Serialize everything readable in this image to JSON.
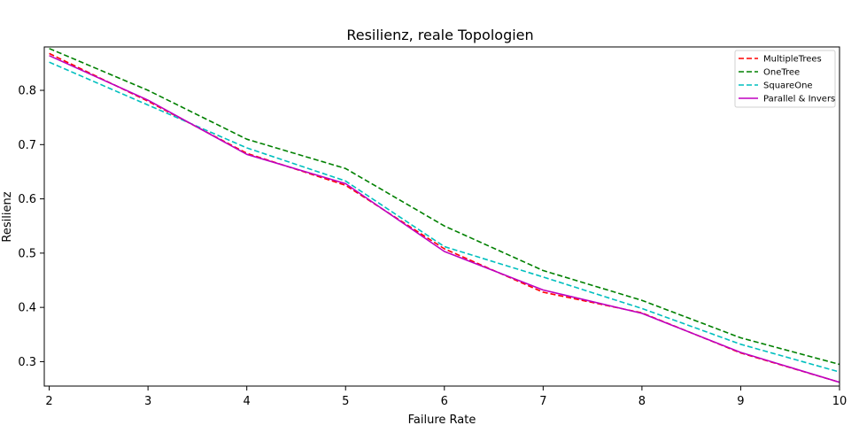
{
  "chart_data": {
    "type": "line",
    "title": "Resilienz, reale Topologien",
    "xlabel": "Failure Rate",
    "ylabel": "Resilienz",
    "xlim": [
      1.95,
      10
    ],
    "ylim": [
      0.255,
      0.88
    ],
    "x_ticks": [
      2,
      3,
      4,
      5,
      6,
      7,
      8,
      9,
      10
    ],
    "y_ticks": [
      0.3,
      0.4,
      0.5,
      0.6,
      0.7,
      0.8
    ],
    "legend_position": "top-right",
    "grid": false,
    "x": [
      2,
      3,
      4,
      5,
      6,
      7,
      8,
      9,
      10
    ],
    "series": [
      {
        "name": "MultipleTrees",
        "color": "#ff0000",
        "style": "dashed",
        "values": [
          0.868,
          0.78,
          0.684,
          0.625,
          0.508,
          0.428,
          0.39,
          0.316,
          0.262
        ]
      },
      {
        "name": "OneTree",
        "color": "#008000",
        "style": "dashed",
        "values": [
          0.877,
          0.8,
          0.71,
          0.656,
          0.55,
          0.468,
          0.413,
          0.344,
          0.295
        ]
      },
      {
        "name": "SquareOne",
        "color": "#00bfbf",
        "style": "dashed",
        "values": [
          0.852,
          0.773,
          0.694,
          0.633,
          0.512,
          0.456,
          0.398,
          0.332,
          0.281
        ]
      },
      {
        "name": "Parallel & Invers",
        "color": "#bf00bf",
        "style": "solid",
        "values": [
          0.864,
          0.782,
          0.682,
          0.628,
          0.503,
          0.432,
          0.389,
          0.317,
          0.262
        ]
      }
    ]
  }
}
